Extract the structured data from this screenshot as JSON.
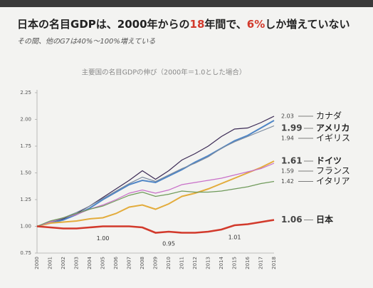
{
  "chart_data": {
    "type": "line",
    "title_parts": [
      "日本の名目GDPは、2000年からの",
      "18",
      "年間で、",
      "6%",
      "しか増えていない"
    ],
    "subtitle": "その間、他のG7は40%〜100%増えている",
    "chart_title": "主要国の名目GDPの伸び（2000年＝1.0とした場合）",
    "categories": [
      "2000",
      "2001",
      "2002",
      "2003",
      "2004",
      "2005",
      "2006",
      "2007",
      "2008",
      "2009",
      "2010",
      "2011",
      "2012",
      "2013",
      "2014",
      "2015",
      "2016",
      "2017",
      "2018"
    ],
    "ylim": [
      0.75,
      2.25
    ],
    "yticks": [
      {
        "value": 0.75,
        "label": "0.75"
      },
      {
        "value": 1,
        "label": "1.00"
      },
      {
        "value": 1.25,
        "label": "1.25"
      },
      {
        "value": 1.5,
        "label": "1.50"
      },
      {
        "value": 1.75,
        "label": "1.75"
      },
      {
        "value": 2,
        "label": "2.00"
      },
      {
        "value": 2.25,
        "label": "2.25"
      }
    ],
    "grid": false,
    "series": [
      {
        "name": "カナダ",
        "color": "#3b2a55",
        "highlight": false,
        "values": [
          1.0,
          1.03,
          1.07,
          1.12,
          1.19,
          1.27,
          1.35,
          1.43,
          1.52,
          1.44,
          1.52,
          1.62,
          1.68,
          1.75,
          1.84,
          1.91,
          1.92,
          1.97,
          2.03
        ]
      },
      {
        "name": "アメリカ",
        "color": "#4f86c6",
        "highlight": true,
        "values": [
          1.0,
          1.03,
          1.06,
          1.11,
          1.17,
          1.25,
          1.32,
          1.39,
          1.43,
          1.41,
          1.47,
          1.53,
          1.6,
          1.66,
          1.73,
          1.8,
          1.85,
          1.92,
          1.99
        ]
      },
      {
        "name": "イギリス",
        "color": "#7a8aa0",
        "highlight": false,
        "values": [
          1.0,
          1.04,
          1.08,
          1.13,
          1.19,
          1.26,
          1.33,
          1.4,
          1.46,
          1.42,
          1.48,
          1.54,
          1.59,
          1.65,
          1.73,
          1.79,
          1.84,
          1.89,
          1.94
        ]
      },
      {
        "name": "ドイツ",
        "color": "#e3ac3c",
        "highlight": true,
        "values": [
          1.0,
          1.03,
          1.04,
          1.05,
          1.07,
          1.08,
          1.12,
          1.18,
          1.2,
          1.16,
          1.21,
          1.28,
          1.31,
          1.35,
          1.4,
          1.45,
          1.5,
          1.55,
          1.61
        ]
      },
      {
        "name": "フランス",
        "color": "#c86fc8",
        "highlight": false,
        "values": [
          1.0,
          1.04,
          1.08,
          1.11,
          1.16,
          1.2,
          1.25,
          1.31,
          1.34,
          1.31,
          1.34,
          1.39,
          1.41,
          1.43,
          1.45,
          1.48,
          1.51,
          1.54,
          1.59
        ]
      },
      {
        "name": "イタリア",
        "color": "#6f9a5a",
        "highlight": false,
        "values": [
          1.0,
          1.05,
          1.08,
          1.12,
          1.16,
          1.19,
          1.24,
          1.29,
          1.32,
          1.28,
          1.3,
          1.33,
          1.32,
          1.32,
          1.33,
          1.35,
          1.37,
          1.4,
          1.42
        ]
      },
      {
        "name": "日本",
        "color": "#d23a2c",
        "highlight": true,
        "values": [
          1.0,
          0.99,
          0.98,
          0.98,
          0.99,
          1.0,
          1.0,
          1.0,
          0.99,
          0.94,
          0.95,
          0.94,
          0.94,
          0.95,
          0.97,
          1.01,
          1.02,
          1.04,
          1.06
        ],
        "value_labels": [
          null,
          null,
          null,
          null,
          null,
          "1.00",
          null,
          null,
          null,
          null,
          "0.95",
          null,
          null,
          null,
          null,
          "1.01",
          null,
          null,
          "1.06"
        ]
      }
    ]
  }
}
